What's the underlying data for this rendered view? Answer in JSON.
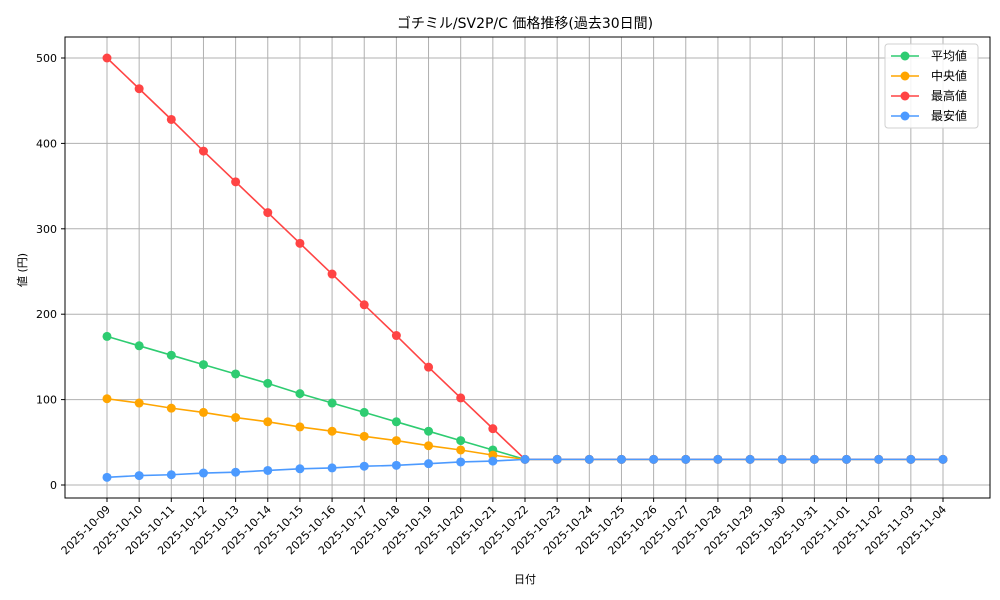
{
  "chart_data": {
    "type": "line",
    "title": "ゴチミル/SV2P/C 価格推移(過去30日間)",
    "xlabel": "日付",
    "ylabel": "値 (円)",
    "ylim": [
      -15,
      525
    ],
    "yticks": [
      0,
      100,
      200,
      300,
      400,
      500
    ],
    "grid": true,
    "legend_position": "upper right",
    "x": [
      "2025-10-09",
      "2025-10-10",
      "2025-10-11",
      "2025-10-12",
      "2025-10-13",
      "2025-10-14",
      "2025-10-15",
      "2025-10-16",
      "2025-10-17",
      "2025-10-18",
      "2025-10-19",
      "2025-10-20",
      "2025-10-21",
      "2025-10-22",
      "2025-10-23",
      "2025-10-24",
      "2025-10-25",
      "2025-10-26",
      "2025-10-27",
      "2025-10-28",
      "2025-10-29",
      "2025-10-30",
      "2025-10-31",
      "2025-11-01",
      "2025-11-02",
      "2025-11-03",
      "2025-11-04"
    ],
    "series": [
      {
        "name": "平均値",
        "color": "#2ecc71",
        "values": [
          174,
          163,
          152,
          141,
          130,
          119,
          107,
          96,
          85,
          74,
          63,
          52,
          41,
          30,
          30,
          30,
          30,
          30,
          30,
          30,
          30,
          30,
          30,
          30,
          30,
          30,
          30
        ]
      },
      {
        "name": "中央値",
        "color": "#ffa500",
        "values": [
          101,
          96,
          90,
          85,
          79,
          74,
          68,
          63,
          57,
          52,
          46,
          41,
          35,
          30,
          30,
          30,
          30,
          30,
          30,
          30,
          30,
          30,
          30,
          30,
          30,
          30,
          30
        ]
      },
      {
        "name": "最高値",
        "color": "#ff4444",
        "values": [
          500,
          464,
          428,
          391,
          355,
          319,
          283,
          247,
          211,
          175,
          138,
          102,
          66,
          30,
          30,
          30,
          30,
          30,
          30,
          30,
          30,
          30,
          30,
          30,
          30,
          30,
          30
        ]
      },
      {
        "name": "最安値",
        "color": "#4c9aff",
        "values": [
          9,
          11,
          12,
          14,
          15,
          17,
          19,
          20,
          22,
          23,
          25,
          27,
          28,
          30,
          30,
          30,
          30,
          30,
          30,
          30,
          30,
          30,
          30,
          30,
          30,
          30,
          30
        ]
      }
    ]
  }
}
